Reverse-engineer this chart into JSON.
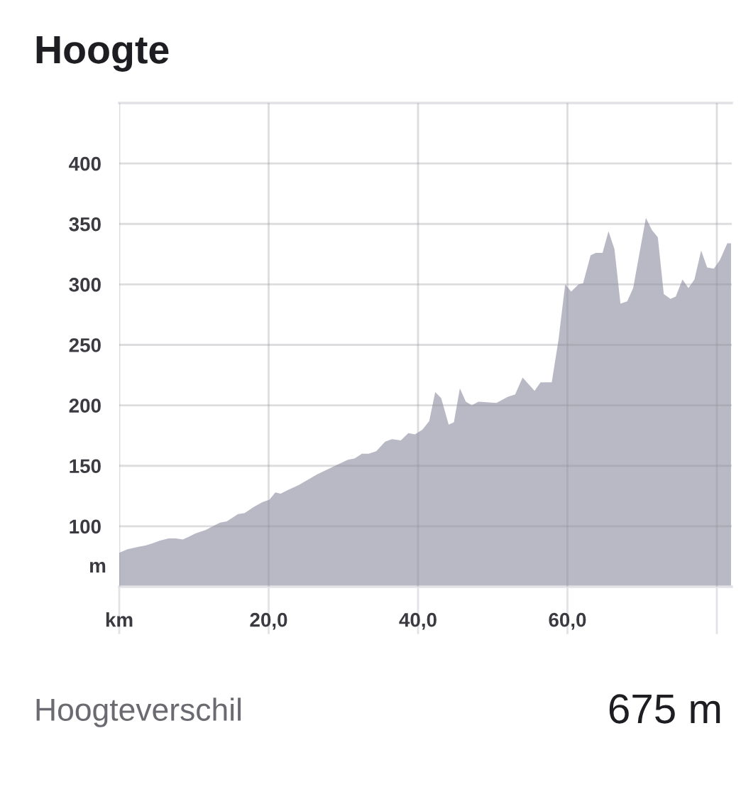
{
  "chart_data": {
    "type": "area",
    "title": "Hoogte",
    "ylabel": "m",
    "x": [
      0,
      1.1,
      2.6,
      3.5,
      4.5,
      5.4,
      6.6,
      7.6,
      8.5,
      9.2,
      10.2,
      11.6,
      12.5,
      13.5,
      14.4,
      15.9,
      16.8,
      18.0,
      19.2,
      20.1,
      20.9,
      21.6,
      22.6,
      24.0,
      25.4,
      26.5,
      27.9,
      29.6,
      30.6,
      31.5,
      32.5,
      33.4,
      34.4,
      35.6,
      36.5,
      37.7,
      38.7,
      39.6,
      40.6,
      41.5,
      42.3,
      43.1,
      44.1,
      44.8,
      45.6,
      46.4,
      47.2,
      48.1,
      50.5,
      52.0,
      53.0,
      54.0,
      55.6,
      56.4,
      57.9,
      58.8,
      59.7,
      60.5,
      61.5,
      62.1,
      63.1,
      63.8,
      64.7,
      65.5,
      66.3,
      67.1,
      68.0,
      68.8,
      70.5,
      71.3,
      72.1,
      72.9,
      73.8,
      74.5,
      75.4,
      76.2,
      77.0,
      77.9,
      78.7,
      79.6,
      80.4,
      81.4,
      81.9
    ],
    "series": [
      {
        "color": "#b9b9c6",
        "values": [
          78,
          81,
          83,
          84,
          86,
          88,
          90,
          90,
          89,
          91,
          94,
          97,
          100,
          103,
          104,
          110,
          111,
          116,
          120,
          122,
          128,
          127,
          130,
          134,
          139,
          143,
          147,
          152,
          155,
          156,
          160,
          160,
          162,
          170,
          172,
          171,
          177,
          176,
          180,
          187,
          211,
          206,
          184,
          186,
          214,
          203,
          200,
          203,
          202,
          207,
          209,
          223,
          212,
          219,
          219,
          254,
          300,
          294,
          300,
          301,
          324,
          326,
          326,
          344,
          329,
          284,
          286,
          297,
          355,
          345,
          339,
          292,
          288,
          290,
          304,
          297,
          304,
          328,
          314,
          313,
          320,
          334,
          334
        ]
      }
    ],
    "xlim": [
      0,
      82
    ],
    "ylim": [
      50,
      450
    ],
    "xticks": [
      {
        "value": 0,
        "label": "km"
      },
      {
        "value": 20,
        "label": "20,0"
      },
      {
        "value": 40,
        "label": "40,0"
      },
      {
        "value": 60,
        "label": "60,0"
      },
      {
        "value": 80,
        "label": null
      }
    ],
    "yticks": [
      100,
      150,
      200,
      250,
      300,
      350,
      400
    ],
    "grid": true,
    "annotations": [
      "Hoogteverschil",
      "675 m"
    ]
  }
}
